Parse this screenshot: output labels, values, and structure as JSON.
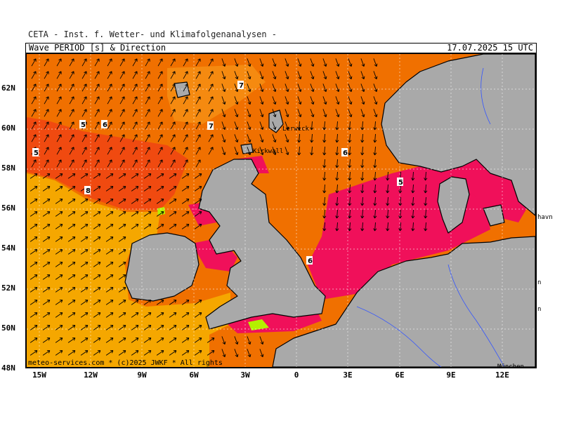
{
  "header": {
    "institute": "CETA - Inst. f. Wetter- und Klimafolgenanalysen -",
    "product": "Wave PERIOD [s] & Direction",
    "valid_time": "17.07.2025 15 UTC"
  },
  "credit": "meteo-services.com * (c)2025 JWKF * All rights",
  "axes": {
    "lat_labels": [
      "62N",
      "60N",
      "58N",
      "56N",
      "54N",
      "52N",
      "50N",
      "48N"
    ],
    "lon_labels": [
      "15W",
      "12W",
      "9W",
      "6W",
      "3W",
      "0",
      "3E",
      "6E",
      "9E",
      "12E"
    ]
  },
  "places": [
    "Lerwick",
    "Kirkwall",
    "havn",
    "n",
    "n",
    "München"
  ],
  "contour_labels": [
    "7",
    "7",
    "5",
    "6",
    "5",
    "8",
    "6",
    "5",
    "6"
  ],
  "colors": {
    "period_8_plus": "#f5a700",
    "period_7": "#f07000",
    "period_6": "#f04a10",
    "period_5": "#f0105a",
    "period_4": "#c8108c",
    "period_short": "#b4f000",
    "land": "#a9a9a9",
    "coast": "#000000",
    "rivers": "#3355ff"
  }
}
